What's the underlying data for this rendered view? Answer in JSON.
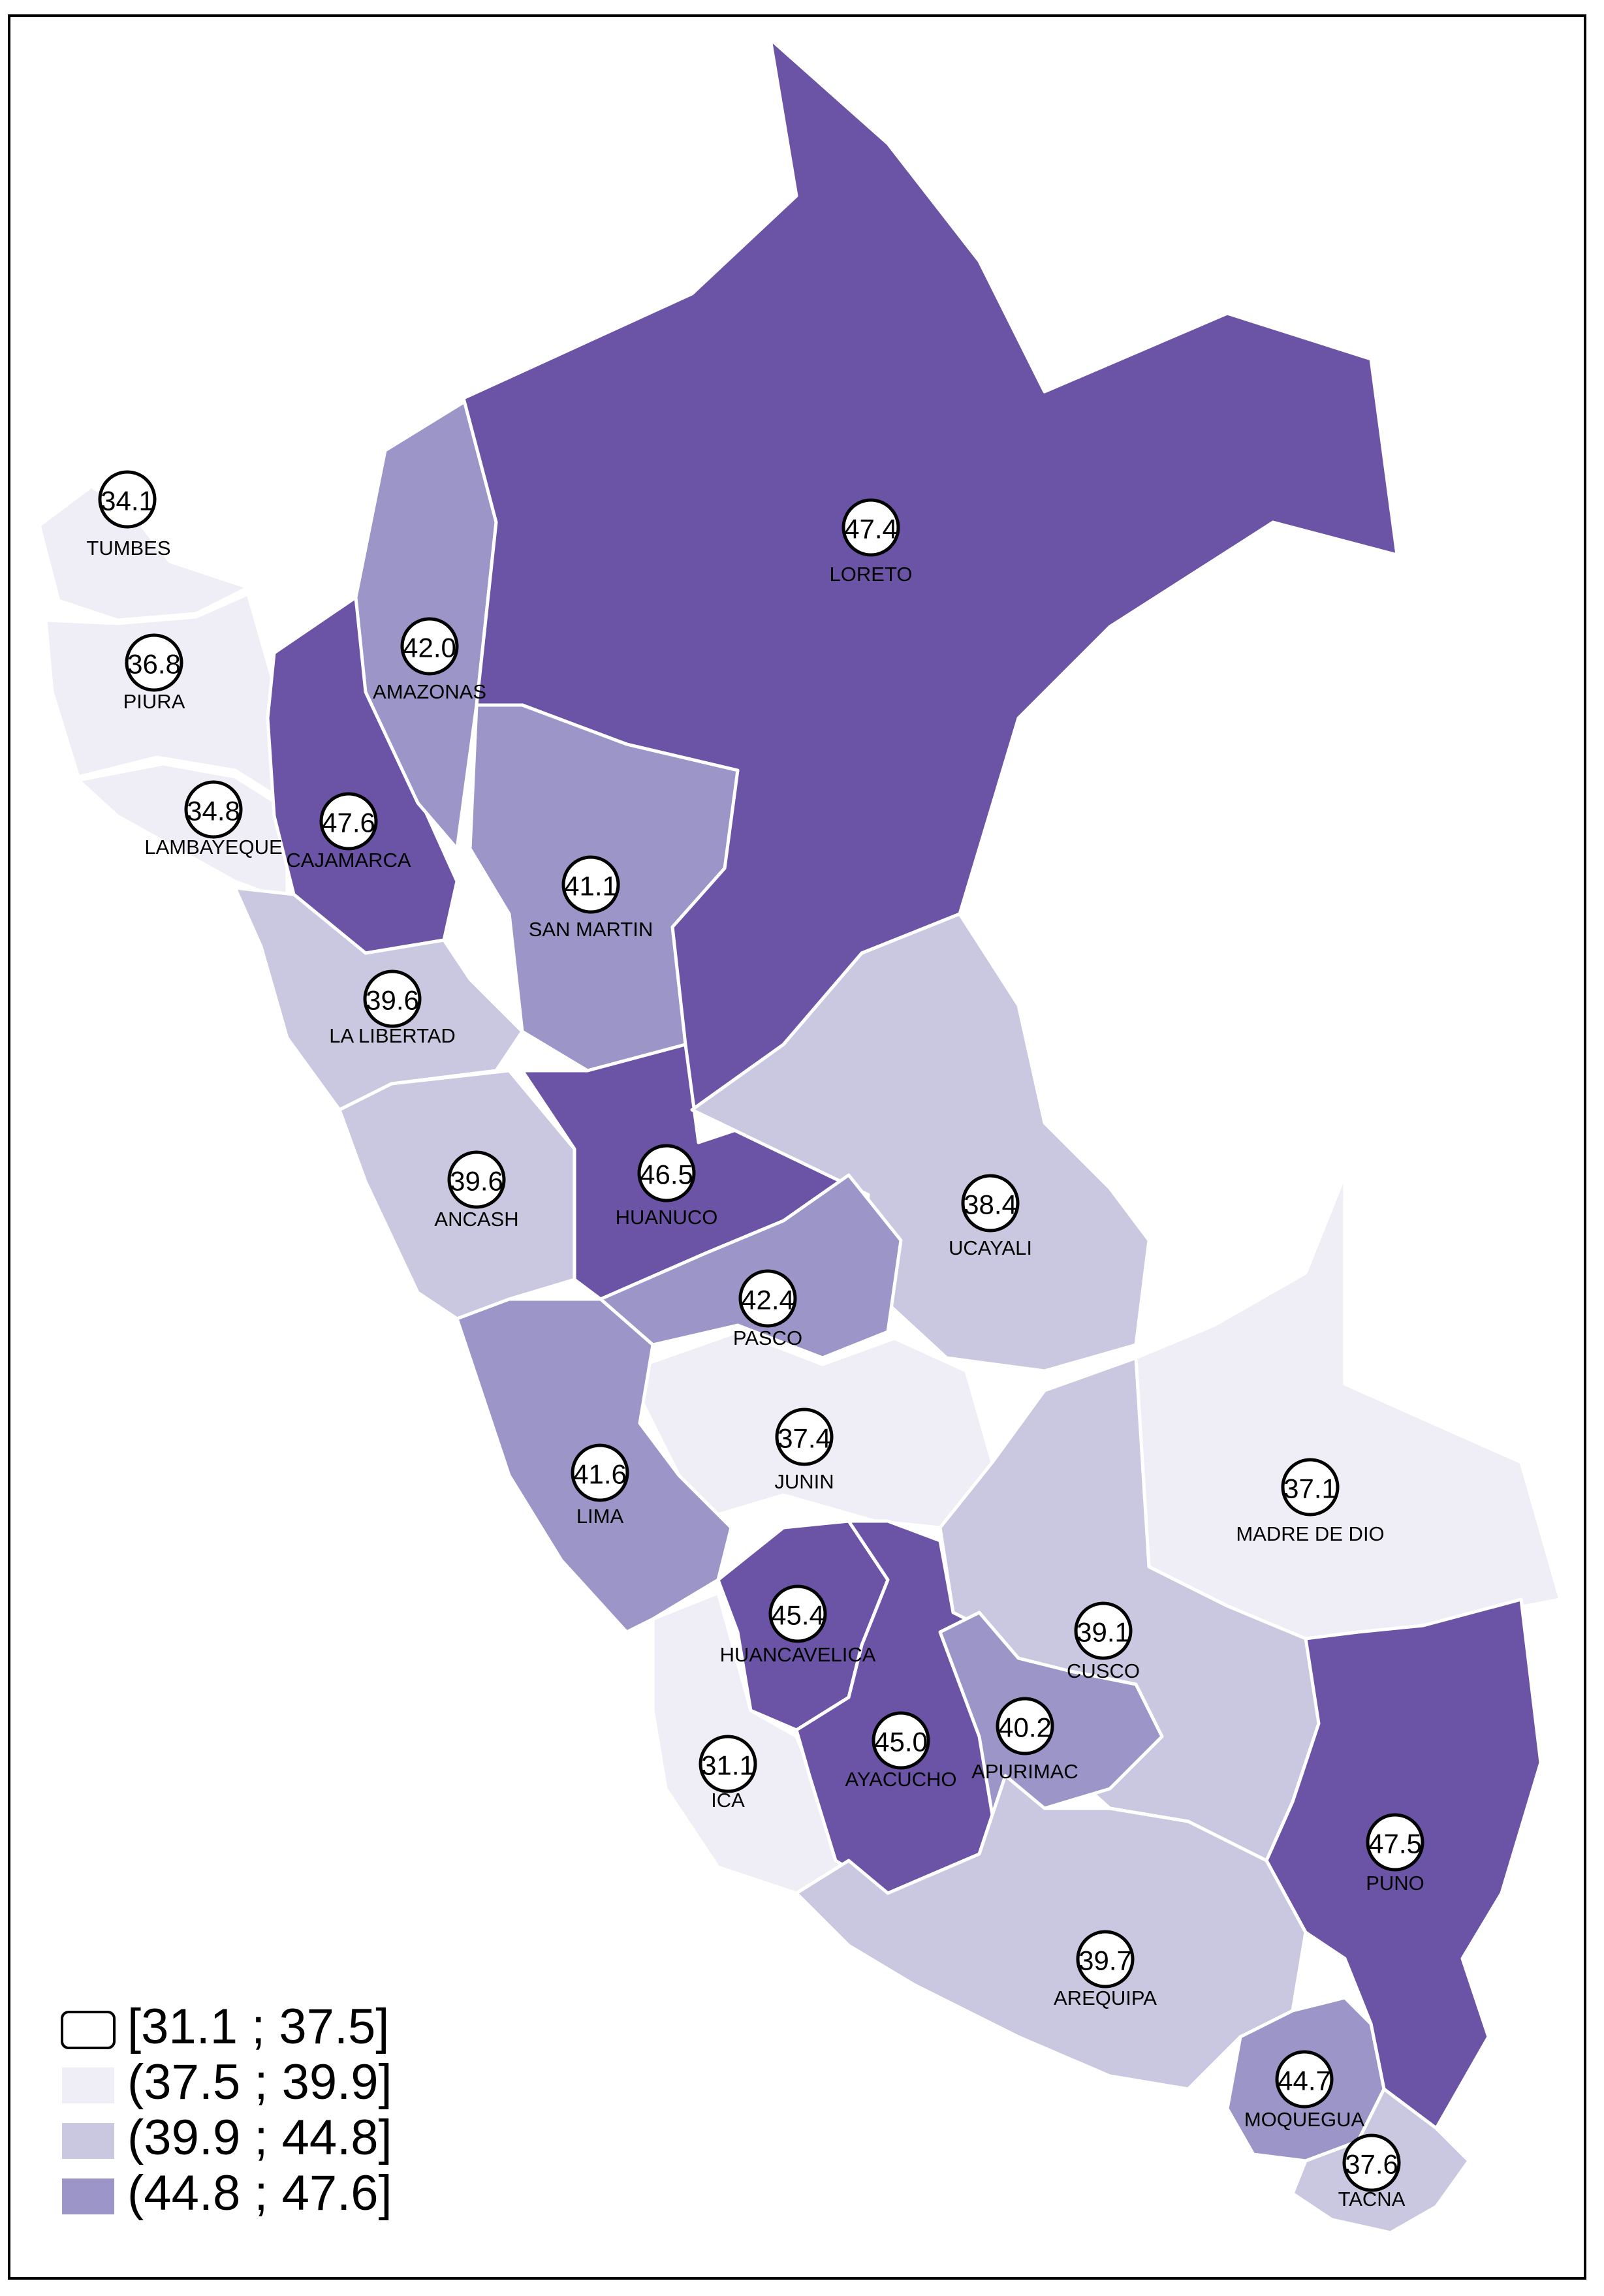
{
  "legend": [
    {
      "label": "[31.1 ; 37.5]",
      "color": "#ffffff"
    },
    {
      "label": "(37.5 ; 39.9]",
      "color": "#efeef6"
    },
    {
      "label": "(39.9 ; 44.8]",
      "color": "#cac8e1"
    },
    {
      "label": "(44.8 ; 47.6]",
      "color": "#9b96c7"
    }
  ],
  "departments": [
    {
      "name": "TUMBES",
      "value": "34.1"
    },
    {
      "name": "PIURA",
      "value": "36.8"
    },
    {
      "name": "LAMBAYEQUE",
      "value": "34.8"
    },
    {
      "name": "CAJAMARCA",
      "value": "47.6"
    },
    {
      "name": "AMAZONAS",
      "value": "42.0"
    },
    {
      "name": "LORETO",
      "value": "47.4"
    },
    {
      "name": "SAN MARTIN",
      "value": "41.1"
    },
    {
      "name": "LA LIBERTAD",
      "value": "39.6"
    },
    {
      "name": "ANCASH",
      "value": "39.6"
    },
    {
      "name": "HUANUCO",
      "value": "46.5"
    },
    {
      "name": "UCAYALI",
      "value": "38.4"
    },
    {
      "name": "PASCO",
      "value": "42.4"
    },
    {
      "name": "JUNIN",
      "value": "37.4"
    },
    {
      "name": "LIMA",
      "value": "41.6"
    },
    {
      "name": "MADRE DE DIO",
      "value": "37.1"
    },
    {
      "name": "HUANCAVELICA",
      "value": "45.4"
    },
    {
      "name": "CUSCO",
      "value": "39.1"
    },
    {
      "name": "ICA",
      "value": "31.1"
    },
    {
      "name": "AYACUCHO",
      "value": "45.0"
    },
    {
      "name": "APURIMAC",
      "value": "40.2"
    },
    {
      "name": "PUNO",
      "value": "47.5"
    },
    {
      "name": "AREQUIPA",
      "value": "39.7"
    },
    {
      "name": "MOQUEGUA",
      "value": "44.7"
    },
    {
      "name": "TACNA",
      "value": "37.6"
    }
  ],
  "fill_colors": {
    "light": "#efeef6",
    "mid": "#cac8e1",
    "dark_mid": "#9b96c7",
    "dark": "#6b53a5"
  }
}
